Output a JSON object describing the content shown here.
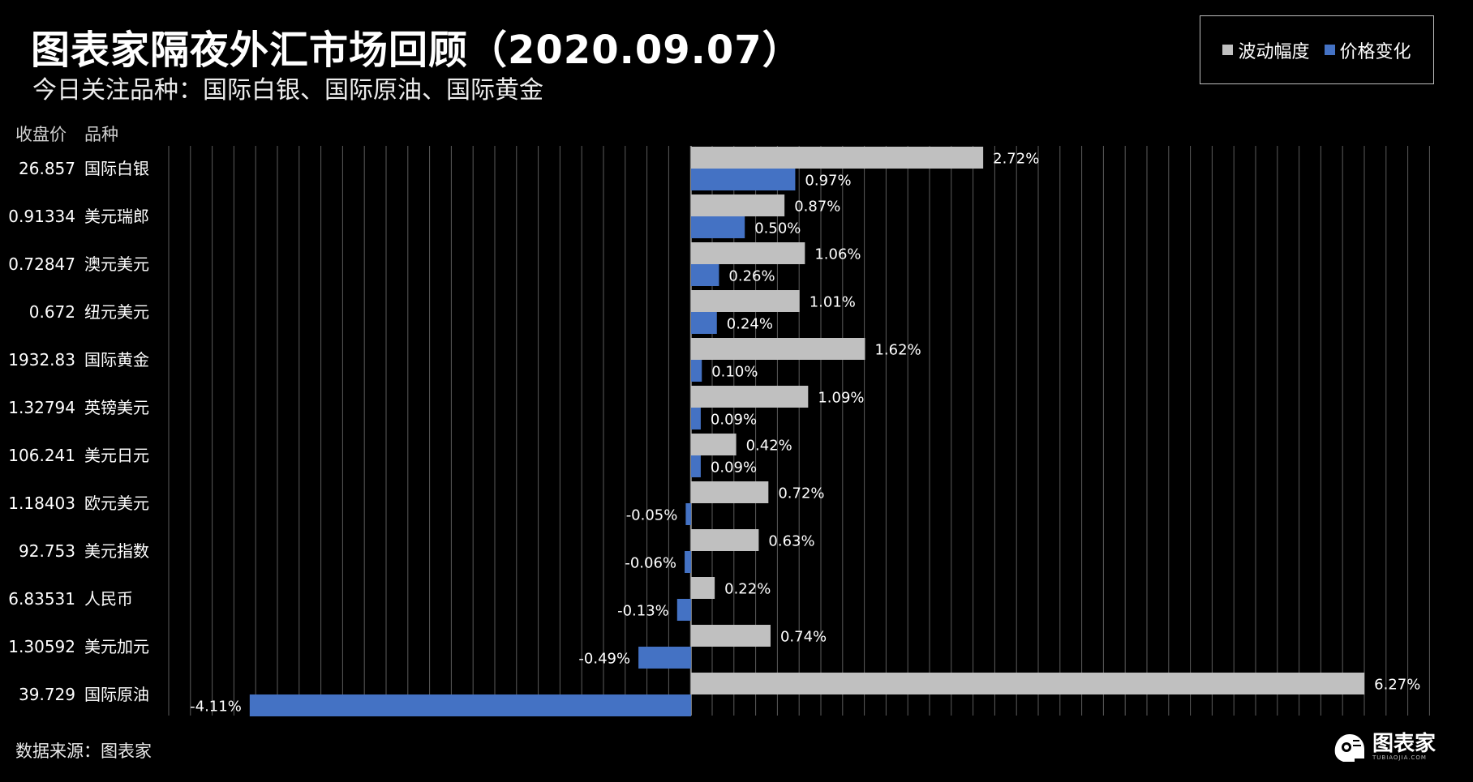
{
  "header": {
    "title": "图表家隔夜外汇市场回顾（2020.09.07）",
    "subtitle": "今日关注品种：国际白银、国际原油、国际黄金"
  },
  "columns": {
    "price": "收盘价",
    "name": "品种"
  },
  "legend": [
    {
      "label": "波动幅度",
      "color": "#c0c0c0"
    },
    {
      "label": "价格变化",
      "color": "#4472c4"
    }
  ],
  "footer": {
    "source": "数据来源：图表家",
    "logo_text": "图表家",
    "logo_sub": "TUBIAOJIA.COM"
  },
  "chart_data": {
    "type": "bar",
    "orientation": "horizontal",
    "xlim": [
      -4.6,
      6.8
    ],
    "grid": true,
    "legend_position": "top-right",
    "categories": [
      "国际白银",
      "美元瑞郎",
      "澳元美元",
      "纽元美元",
      "国际黄金",
      "英镑美元",
      "美元日元",
      "欧元美元",
      "美元指数",
      "人民币",
      "美元加元",
      "国际原油"
    ],
    "prices": [
      "26.857",
      "0.91334",
      "0.72847",
      "0.672",
      "1932.83",
      "1.32794",
      "106.241",
      "1.18403",
      "92.753",
      "6.83531",
      "1.30592",
      "39.729"
    ],
    "series": [
      {
        "name": "波动幅度",
        "color": "#c0c0c0",
        "values": [
          2.72,
          0.87,
          1.06,
          1.01,
          1.62,
          1.09,
          0.42,
          0.72,
          0.63,
          0.22,
          0.74,
          6.27
        ]
      },
      {
        "name": "价格变化",
        "color": "#4472c4",
        "values": [
          0.97,
          0.5,
          0.26,
          0.24,
          0.1,
          0.09,
          0.09,
          -0.05,
          -0.06,
          -0.13,
          -0.49,
          -4.11
        ]
      }
    ]
  }
}
